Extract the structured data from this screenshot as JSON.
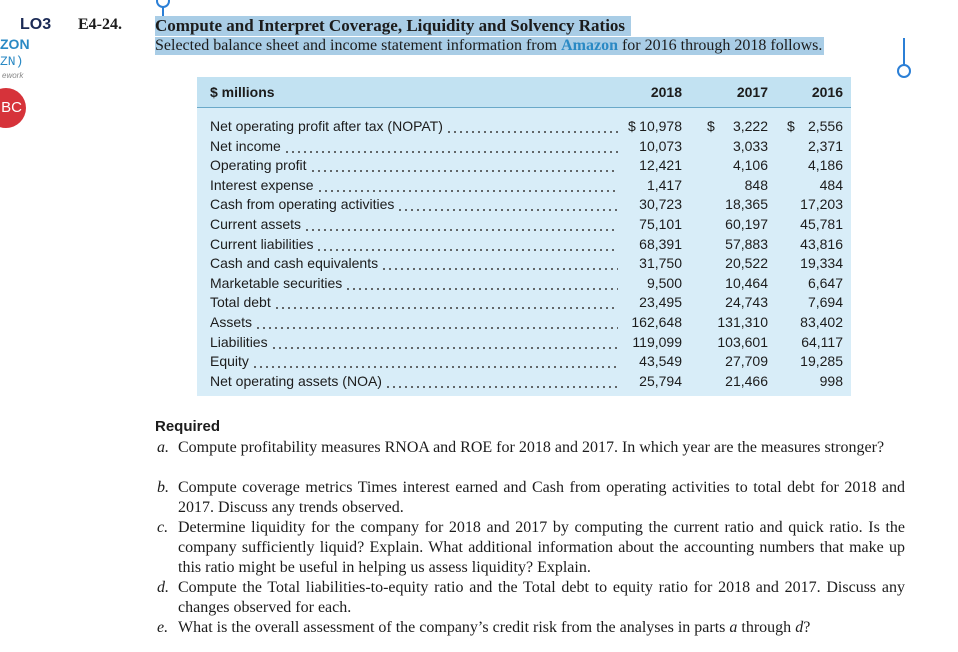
{
  "margin": {
    "lo": "LO3",
    "company": "ZON",
    "ticker": "ZN)",
    "tag": "ework",
    "badge": "BC"
  },
  "exercise": {
    "number": "E4-24.",
    "title": "Compute and Interpret Coverage, Liquidity and Solvency Ratios",
    "intro": {
      "before": "Selected balance sheet and income statement information from ",
      "company": "Amazon",
      "after": " for 2016 through 2018 follows."
    }
  },
  "table": {
    "header": [
      "$ millions",
      "2018",
      "2017",
      "2016"
    ],
    "currency": "$",
    "rows": [
      [
        "Net operating profit after tax (NOPAT)",
        "10,978",
        "3,222",
        "2,556"
      ],
      [
        "Net income",
        "10,073",
        "3,033",
        "2,371"
      ],
      [
        "Operating profit",
        "12,421",
        "4,106",
        "4,186"
      ],
      [
        "Interest expense",
        "1,417",
        "848",
        "484"
      ],
      [
        "Cash from operating activities",
        "30,723",
        "18,365",
        "17,203"
      ],
      [
        "Current assets",
        "75,101",
        "60,197",
        "45,781"
      ],
      [
        "Current liabilities",
        "68,391",
        "57,883",
        "43,816"
      ],
      [
        "Cash and cash equivalents",
        "31,750",
        "20,522",
        "19,334"
      ],
      [
        "Marketable securities",
        "9,500",
        "10,464",
        "6,647"
      ],
      [
        "Total debt",
        "23,495",
        "24,743",
        "7,694"
      ],
      [
        "Assets",
        "162,648",
        "131,310",
        "83,402"
      ],
      [
        "Liabilities",
        "119,099",
        "103,601",
        "64,117"
      ],
      [
        "Equity",
        "43,549",
        "27,709",
        "19,285"
      ],
      [
        "Net operating assets (NOA)",
        "25,794",
        "21,466",
        "998"
      ]
    ]
  },
  "required": {
    "heading": "Required",
    "items": [
      {
        "letter": "a.",
        "parts": [
          "Compute profitability measures RNOA and ROE for 2018 and 2017. In which year are the measures stronger?"
        ]
      },
      {
        "letter": "b.",
        "parts": [
          "Compute coverage metrics Times interest earned and Cash from operating activities to total debt for 2018 and 2017. Discuss any trends observed."
        ]
      },
      {
        "letter": "c.",
        "parts": [
          "Determine liquidity for the company for 2018 and 2017 by computing the current ratio and quick ratio. Is the company sufficiently liquid? Explain. What additional information about the accounting numbers that make up this ratio might be useful in helping us assess liquidity? Explain."
        ]
      },
      {
        "letter": "d.",
        "parts": [
          "Compute the Total liabilities-to-equity ratio and the Total debt to equity ratio for 2018 and 2017. Discuss any changes observed for each."
        ]
      },
      {
        "letter": "e.",
        "parts": [
          "What is the overall assessment of the company’s credit risk from the analyses in parts ",
          "a",
          " through ",
          "d",
          "?"
        ]
      }
    ]
  }
}
